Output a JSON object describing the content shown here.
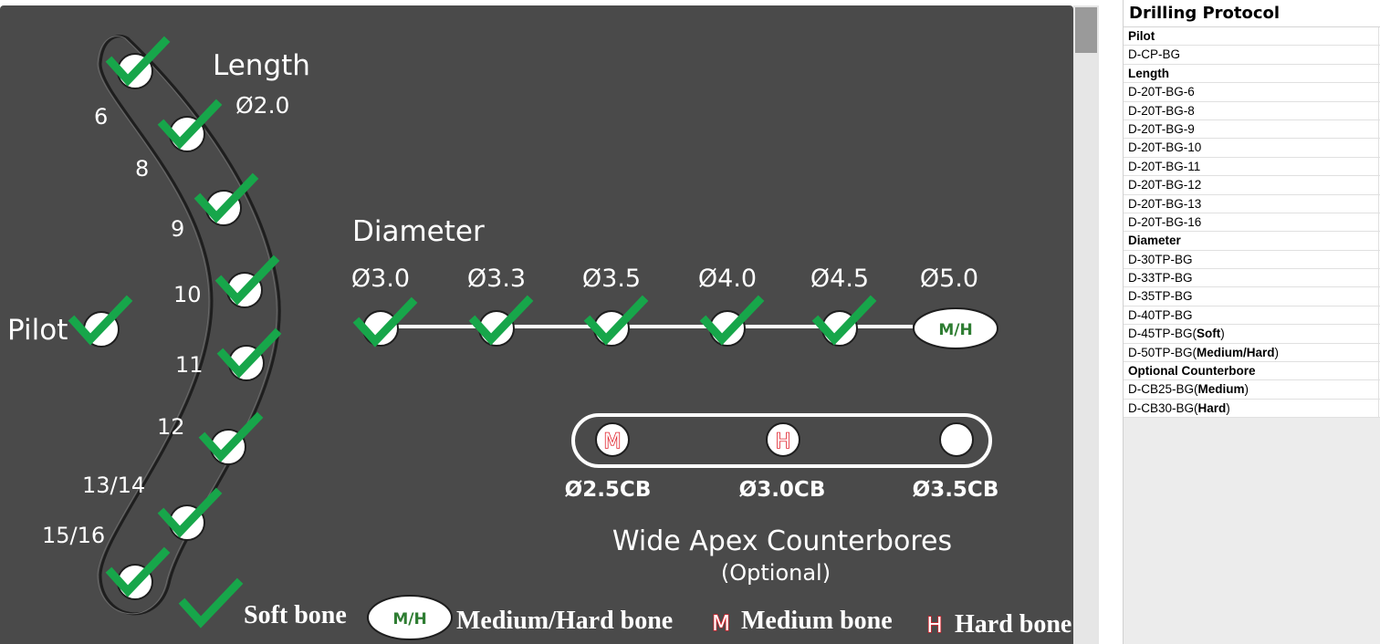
{
  "diagram": {
    "length": {
      "title": "Length",
      "top_diameter": "Ø2.0",
      "steps": [
        "6",
        "8",
        "9",
        "10",
        "11",
        "12",
        "13/14",
        "15/16"
      ]
    },
    "pilot": {
      "label": "Pilot"
    },
    "diameter": {
      "title": "Diameter",
      "steps": [
        "Ø3.0",
        "Ø3.3",
        "Ø3.5",
        "Ø4.0",
        "Ø4.5",
        "Ø5.0"
      ],
      "last_marker": "M/H"
    },
    "counterbores": {
      "title": "Wide Apex Counterbores",
      "subtitle": "(Optional)",
      "steps": [
        {
          "label": "Ø2.5CB",
          "marker": "M"
        },
        {
          "label": "Ø3.0CB",
          "marker": "H"
        },
        {
          "label": "Ø3.5CB",
          "marker": ""
        }
      ]
    },
    "legend": {
      "soft": "Soft bone",
      "medium_hard_marker": "M/H",
      "medium_hard": "Medium/Hard bone",
      "medium_marker": "M",
      "medium": "Medium bone",
      "hard_marker": "H",
      "hard": "Hard bone"
    }
  },
  "protocol": {
    "title": "Drilling Protocol",
    "sections": [
      {
        "heading": "Pilot",
        "items": [
          {
            "code": "D-CP-BG",
            "note": ""
          }
        ]
      },
      {
        "heading": "Length",
        "items": [
          {
            "code": "D-20T-BG-6",
            "note": ""
          },
          {
            "code": "D-20T-BG-8",
            "note": ""
          },
          {
            "code": "D-20T-BG-9",
            "note": ""
          },
          {
            "code": "D-20T-BG-10",
            "note": ""
          },
          {
            "code": "D-20T-BG-11",
            "note": ""
          },
          {
            "code": "D-20T-BG-12",
            "note": ""
          },
          {
            "code": "D-20T-BG-13",
            "note": ""
          },
          {
            "code": "D-20T-BG-16",
            "note": ""
          }
        ]
      },
      {
        "heading": "Diameter",
        "items": [
          {
            "code": "D-30TP-BG",
            "note": ""
          },
          {
            "code": "D-33TP-BG",
            "note": ""
          },
          {
            "code": "D-35TP-BG",
            "note": ""
          },
          {
            "code": "D-40TP-BG",
            "note": ""
          },
          {
            "code": "D-45TP-BG",
            "note": "Soft"
          },
          {
            "code": "D-50TP-BG",
            "note": "Medium/Hard"
          }
        ]
      },
      {
        "heading": "Optional Counterbore",
        "items": [
          {
            "code": "D-CB25-BG",
            "note": "Medium"
          },
          {
            "code": "D-CB30-BG",
            "note": "Hard"
          }
        ]
      }
    ]
  },
  "colors": {
    "board": "#4a4a4a",
    "check": "#17a64a",
    "text": "#ffffff",
    "mh_text": "#2e7d32",
    "marker_red": "#e0202a"
  }
}
